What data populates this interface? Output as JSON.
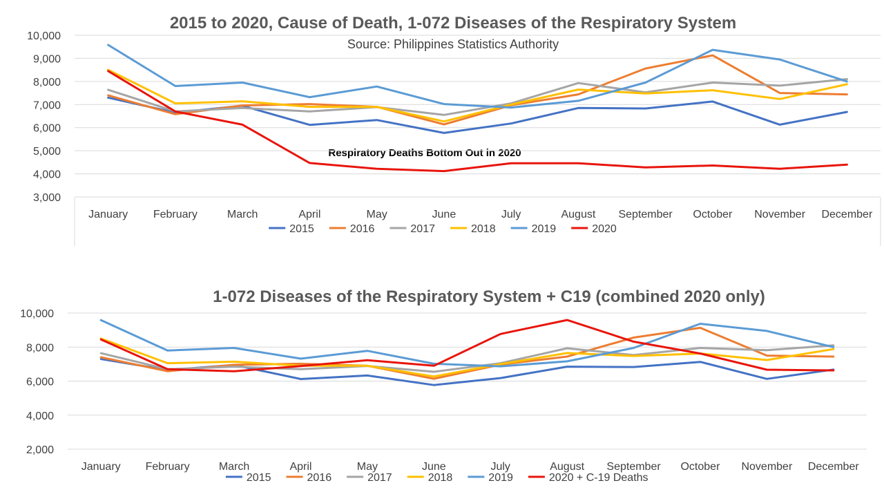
{
  "chart_data": [
    {
      "type": "line",
      "title": "2015 to 2020, Cause of Death, 1-072 Diseases of the Respiratory System",
      "subtitle": "Source: Philippines Statistics Authority",
      "annotation": "Respiratory Deaths Bottom Out in 2020",
      "xlabel": "",
      "ylabel": "",
      "ylim": [
        3000,
        10000
      ],
      "yticks": [
        3000,
        4000,
        5000,
        6000,
        7000,
        8000,
        9000,
        10000
      ],
      "ytick_labels": [
        "3,000",
        "4,000",
        "5,000",
        "6,000",
        "7,000",
        "8,000",
        "9,000",
        "10,000"
      ],
      "grid": true,
      "legend_position": "bottom",
      "categories": [
        "January",
        "February",
        "March",
        "April",
        "May",
        "June",
        "July",
        "August",
        "September",
        "October",
        "November",
        "December"
      ],
      "series": [
        {
          "name": "2015",
          "color": "#4472C4",
          "values": [
            7300,
            6650,
            6950,
            6120,
            6330,
            5770,
            6180,
            6850,
            6830,
            7130,
            6130,
            6680
          ]
        },
        {
          "name": "2016",
          "color": "#ED7D31",
          "values": [
            7400,
            6580,
            6960,
            7020,
            6900,
            6140,
            6970,
            7440,
            8560,
            9130,
            7500,
            7440
          ]
        },
        {
          "name": "2017",
          "color": "#A5A5A5",
          "values": [
            7640,
            6700,
            6850,
            6700,
            6890,
            6550,
            7050,
            7930,
            7530,
            7950,
            7820,
            8100
          ]
        },
        {
          "name": "2018",
          "color": "#FFC000",
          "values": [
            8500,
            7050,
            7140,
            6900,
            6900,
            6270,
            7000,
            7650,
            7480,
            7620,
            7240,
            7880
          ]
        },
        {
          "name": "2019",
          "color": "#5B9BD5",
          "values": [
            9580,
            7800,
            7950,
            7320,
            7780,
            7020,
            6870,
            7160,
            7950,
            9370,
            8950,
            8000
          ]
        },
        {
          "name": "2020",
          "color": "#E8150C",
          "values": [
            8450,
            6700,
            6130,
            4470,
            4220,
            4120,
            4460,
            4460,
            4280,
            4360,
            4220,
            4400
          ]
        }
      ]
    },
    {
      "type": "line",
      "title": "1-072 Diseases of the Respiratory System + C19 (combined 2020 only)",
      "xlabel": "",
      "ylabel": "",
      "ylim": [
        2000,
        10000
      ],
      "yticks": [
        2000,
        4000,
        6000,
        8000,
        10000
      ],
      "ytick_labels": [
        "2,000",
        "4,000",
        "6,000",
        "8,000",
        "10,000"
      ],
      "grid": true,
      "legend_position": "bottom",
      "categories": [
        "January",
        "February",
        "March",
        "April",
        "May",
        "June",
        "July",
        "August",
        "September",
        "October",
        "November",
        "December"
      ],
      "series": [
        {
          "name": "2015",
          "color": "#4472C4",
          "values": [
            7300,
            6650,
            6950,
            6120,
            6330,
            5770,
            6180,
            6850,
            6830,
            7130,
            6130,
            6680
          ]
        },
        {
          "name": "2016",
          "color": "#ED7D31",
          "values": [
            7400,
            6580,
            6960,
            7020,
            6900,
            6140,
            6970,
            7440,
            8560,
            9130,
            7500,
            7440
          ]
        },
        {
          "name": "2017",
          "color": "#A5A5A5",
          "values": [
            7640,
            6700,
            6850,
            6700,
            6890,
            6550,
            7050,
            7930,
            7530,
            7950,
            7820,
            8100
          ]
        },
        {
          "name": "2018",
          "color": "#FFC000",
          "values": [
            8500,
            7050,
            7140,
            6900,
            6900,
            6270,
            7000,
            7650,
            7480,
            7620,
            7240,
            7880
          ]
        },
        {
          "name": "2019",
          "color": "#5B9BD5",
          "values": [
            9580,
            7800,
            7950,
            7320,
            7780,
            7020,
            6870,
            7160,
            7950,
            9370,
            8950,
            8000
          ]
        },
        {
          "name": "2020 + C-19 Deaths",
          "color": "#E8150C",
          "values": [
            8450,
            6700,
            6580,
            6880,
            7230,
            6900,
            8770,
            9590,
            8320,
            7620,
            6670,
            6630
          ]
        }
      ]
    }
  ]
}
